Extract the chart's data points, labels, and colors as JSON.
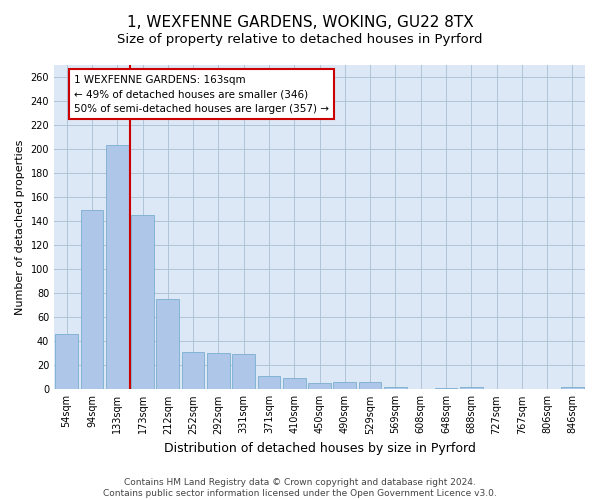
{
  "title": "1, WEXFENNE GARDENS, WOKING, GU22 8TX",
  "subtitle": "Size of property relative to detached houses in Pyrford",
  "xlabel": "Distribution of detached houses by size in Pyrford",
  "ylabel": "Number of detached properties",
  "categories": [
    "54sqm",
    "94sqm",
    "133sqm",
    "173sqm",
    "212sqm",
    "252sqm",
    "292sqm",
    "331sqm",
    "371sqm",
    "410sqm",
    "450sqm",
    "490sqm",
    "529sqm",
    "569sqm",
    "608sqm",
    "648sqm",
    "688sqm",
    "727sqm",
    "767sqm",
    "806sqm",
    "846sqm"
  ],
  "values": [
    46,
    149,
    203,
    145,
    75,
    31,
    30,
    29,
    11,
    9,
    5,
    6,
    6,
    2,
    0,
    1,
    2,
    0,
    0,
    0,
    2
  ],
  "bar_color": "#aec6e8",
  "bar_edge_color": "#7aaed0",
  "vline_x": 2.5,
  "vline_color": "#cc0000",
  "annotation_box_text": "1 WEXFENNE GARDENS: 163sqm\n← 49% of detached houses are smaller (346)\n50% of semi-detached houses are larger (357) →",
  "ylim": [
    0,
    270
  ],
  "yticks": [
    0,
    20,
    40,
    60,
    80,
    100,
    120,
    140,
    160,
    180,
    200,
    220,
    240,
    260
  ],
  "background_color": "#ffffff",
  "plot_bg_color": "#dce8f5",
  "grid_color": "#b0c4d8",
  "footer_text": "Contains HM Land Registry data © Crown copyright and database right 2024.\nContains public sector information licensed under the Open Government Licence v3.0.",
  "title_fontsize": 11,
  "subtitle_fontsize": 9.5,
  "xlabel_fontsize": 9,
  "ylabel_fontsize": 8,
  "tick_fontsize": 7,
  "footer_fontsize": 6.5,
  "annot_fontsize": 7.5
}
